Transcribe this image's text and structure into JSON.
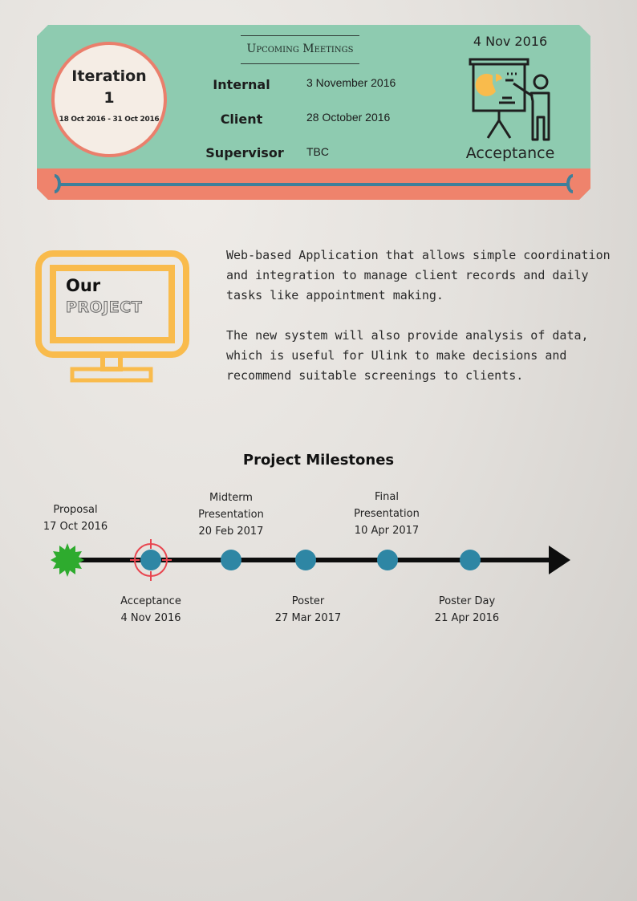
{
  "header": {
    "iteration": {
      "title_line1": "Iteration",
      "title_line2": "1",
      "dates": "18 Oct 2016 - 31 Oct 2016"
    },
    "meetings": {
      "heading": "Upcoming Meetings",
      "rows": [
        {
          "name": "Internal",
          "date": "3 November 2016"
        },
        {
          "name": "Client",
          "date": "28 October 2016"
        },
        {
          "name": "Supervisor",
          "date": "TBC"
        }
      ]
    },
    "next_milestone": {
      "date": "4 Nov 2016",
      "label": "Acceptance",
      "icon": "presentation-icon"
    }
  },
  "project": {
    "our": "Our",
    "project": "PROJECT",
    "icon": "monitor-icon",
    "paragraphs": [
      "Web-based Application that allows simple coordination and integration to manage client records and daily tasks like appointment making.",
      "The new system will also provide analysis of data, which is useful for Ulink to make decisions and recommend suitable screenings to clients."
    ]
  },
  "milestones": {
    "title": "Project Milestones",
    "items": [
      {
        "name_lines": [
          "Proposal"
        ],
        "date": "17 Oct 2016",
        "position": "above",
        "status": "completed"
      },
      {
        "name_lines": [
          "Acceptance"
        ],
        "date": "4 Nov 2016",
        "position": "below",
        "status": "current"
      },
      {
        "name_lines": [
          "Midterm",
          "Presentation"
        ],
        "date": "20 Feb 2017",
        "position": "above",
        "status": "upcoming"
      },
      {
        "name_lines": [
          "Poster"
        ],
        "date": "27 Mar 2017",
        "position": "below",
        "status": "upcoming"
      },
      {
        "name_lines": [
          "Final",
          "Presentation"
        ],
        "date": "10 Apr 2017",
        "position": "above",
        "status": "upcoming"
      },
      {
        "name_lines": [
          "Poster Day"
        ],
        "date": "21 Apr 2016",
        "position": "below",
        "status": "upcoming"
      }
    ]
  },
  "colors": {
    "banner": "#8ecbb0",
    "accent": "#ef836c",
    "dot": "#2e86a4",
    "monitor": "#f9bb4c",
    "completed": "#2eab2e",
    "target": "#e8454f"
  }
}
